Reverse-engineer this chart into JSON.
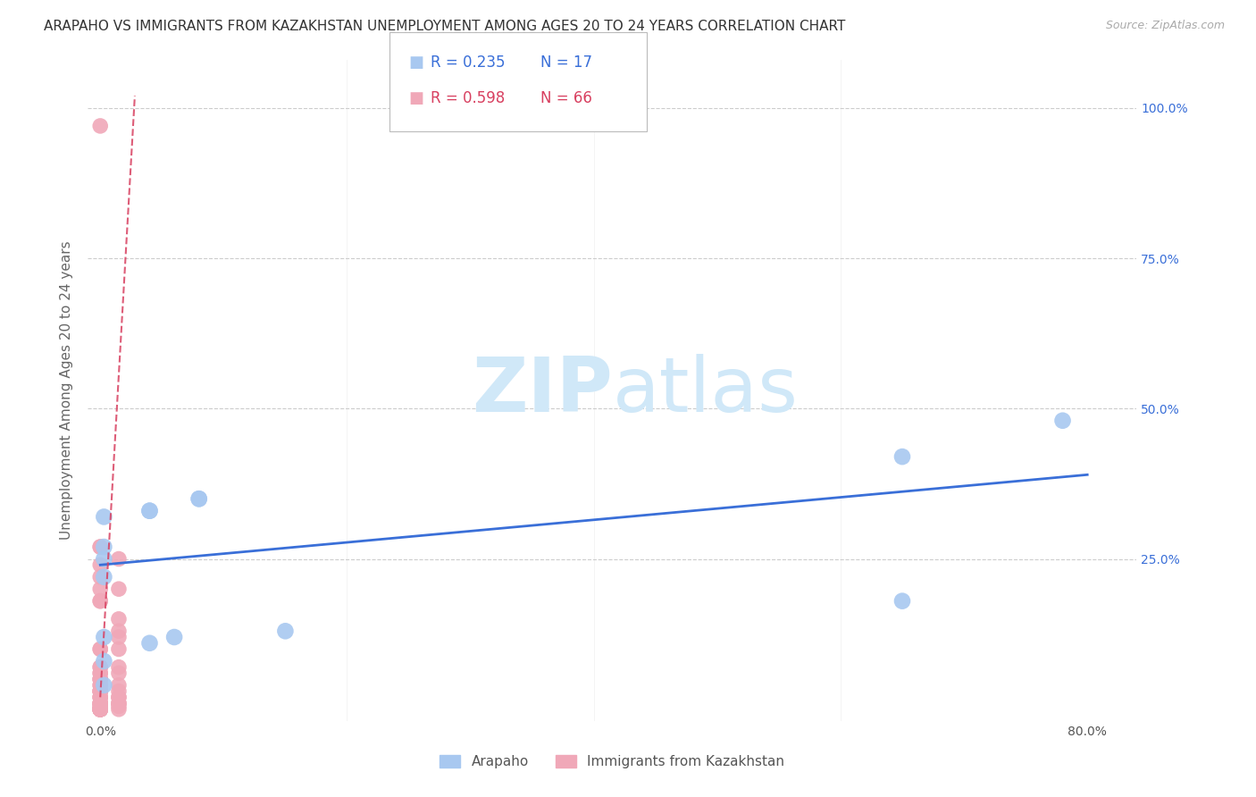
{
  "title": "ARAPAHO VS IMMIGRANTS FROM KAZAKHSTAN UNEMPLOYMENT AMONG AGES 20 TO 24 YEARS CORRELATION CHART",
  "source": "Source: ZipAtlas.com",
  "ylabel": "Unemployment Among Ages 20 to 24 years",
  "xlim": [
    -0.01,
    0.84
  ],
  "ylim": [
    -0.02,
    1.08
  ],
  "arapaho_color": "#a8c8f0",
  "kazakhstan_color": "#f0a8b8",
  "arapaho_line_color": "#3a6fd8",
  "kazakhstan_line_color": "#d84060",
  "legend_r1": "0.235",
  "legend_n1": "17",
  "legend_r2": "0.598",
  "legend_n2": "66",
  "legend_label1": "Arapaho",
  "legend_label2": "Immigrants from Kazakhstan",
  "watermark_zip": "ZIP",
  "watermark_atlas": "atlas",
  "watermark_color": "#d0e8f8",
  "background_color": "#ffffff",
  "grid_color": "#cccccc",
  "arapaho_x": [
    0.003,
    0.003,
    0.003,
    0.003,
    0.003,
    0.003,
    0.04,
    0.04,
    0.08,
    0.08,
    0.04,
    0.06,
    0.65,
    0.65,
    0.78,
    0.15,
    0.003
  ],
  "arapaho_y": [
    0.27,
    0.32,
    0.22,
    0.12,
    0.08,
    0.25,
    0.33,
    0.33,
    0.35,
    0.35,
    0.11,
    0.12,
    0.42,
    0.18,
    0.48,
    0.13,
    0.04
  ],
  "kazakhstan_x": [
    0.0,
    0.0,
    0.0,
    0.0,
    0.0,
    0.0,
    0.0,
    0.0,
    0.0,
    0.0,
    0.0,
    0.0,
    0.0,
    0.0,
    0.0,
    0.0,
    0.0,
    0.0,
    0.0,
    0.0,
    0.0,
    0.0,
    0.0,
    0.0,
    0.0,
    0.0,
    0.0,
    0.0,
    0.0,
    0.0,
    0.0,
    0.0,
    0.0,
    0.0,
    0.0,
    0.0,
    0.0,
    0.0,
    0.0,
    0.0,
    0.0,
    0.0,
    0.0,
    0.0,
    0.0,
    0.0,
    0.0,
    0.0,
    0.0,
    0.0,
    0.015,
    0.015,
    0.015,
    0.015,
    0.015,
    0.015,
    0.015,
    0.015,
    0.015,
    0.015,
    0.015,
    0.015,
    0.015,
    0.015,
    0.015,
    0.015
  ],
  "kazakhstan_y": [
    0.97,
    0.24,
    0.22,
    0.2,
    0.18,
    0.27,
    0.27,
    0.18,
    0.1,
    0.1,
    0.07,
    0.07,
    0.06,
    0.06,
    0.05,
    0.05,
    0.05,
    0.04,
    0.04,
    0.03,
    0.03,
    0.03,
    0.03,
    0.02,
    0.02,
    0.02,
    0.01,
    0.01,
    0.01,
    0.01,
    0.005,
    0.005,
    0.005,
    0.0,
    0.0,
    0.0,
    0.0,
    0.0,
    0.0,
    0.0,
    0.0,
    0.0,
    0.0,
    0.0,
    0.0,
    0.0,
    0.0,
    0.0,
    0.0,
    0.0,
    0.25,
    0.2,
    0.15,
    0.13,
    0.12,
    0.1,
    0.07,
    0.06,
    0.04,
    0.03,
    0.02,
    0.02,
    0.01,
    0.01,
    0.005,
    0.0
  ],
  "arapaho_trend_x": [
    0.0,
    0.8
  ],
  "arapaho_trend_y": [
    0.24,
    0.39
  ],
  "kazakhstan_trend_x": [
    0.0,
    0.028
  ],
  "kazakhstan_trend_y": [
    0.02,
    1.02
  ],
  "title_fontsize": 11,
  "axis_label_fontsize": 11,
  "tick_fontsize": 10,
  "legend_fontsize": 12,
  "right_tick_color": "#3a6fd8"
}
